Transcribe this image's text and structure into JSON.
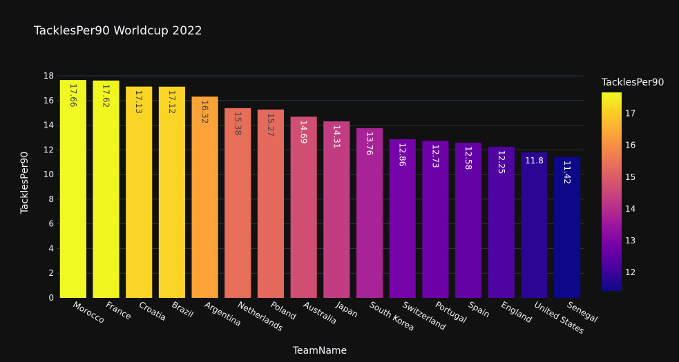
{
  "chart_data": {
    "type": "bar",
    "title": "TacklesPer90 Worldcup 2022",
    "xlabel": "TeamName",
    "ylabel": "TacklesPer90",
    "categories": [
      "Morocco",
      "France",
      "Croatia",
      "Brazil",
      "Argentina",
      "Netherlands",
      "Poland",
      "Australia",
      "Japan",
      "South Korea",
      "Switzerland",
      "Portugal",
      "Spain",
      "England",
      "United States",
      "Senegal"
    ],
    "values": [
      17.66,
      17.62,
      17.13,
      17.12,
      16.32,
      15.38,
      15.27,
      14.69,
      14.31,
      13.76,
      12.86,
      12.73,
      12.58,
      12.25,
      11.8,
      11.42
    ],
    "value_labels": [
      "17.66",
      "17.62",
      "17.13",
      "17.12",
      "16.32",
      "15.38",
      "15.27",
      "14.69",
      "14.31",
      "13.76",
      "12.86",
      "12.73",
      "12.58",
      "12.25",
      "11.8",
      "11.42"
    ],
    "ylim": [
      0,
      18
    ],
    "yticks": [
      0,
      2,
      4,
      6,
      8,
      10,
      12,
      14,
      16,
      18
    ],
    "ytick_labels": [
      "0",
      "2",
      "4",
      "6",
      "8",
      "10",
      "12",
      "14",
      "16",
      "18"
    ],
    "grid": true,
    "colorbar": {
      "title": "TacklesPer90",
      "range": [
        11.42,
        17.66
      ],
      "ticks": [
        12,
        13,
        14,
        15,
        16,
        17
      ],
      "tick_labels": [
        "12",
        "13",
        "14",
        "15",
        "16",
        "17"
      ],
      "position": "right",
      "colorscale": "plasma"
    },
    "colors": {
      "background": "#111111",
      "grid": "#283442",
      "text": "#f2f5fa"
    }
  }
}
